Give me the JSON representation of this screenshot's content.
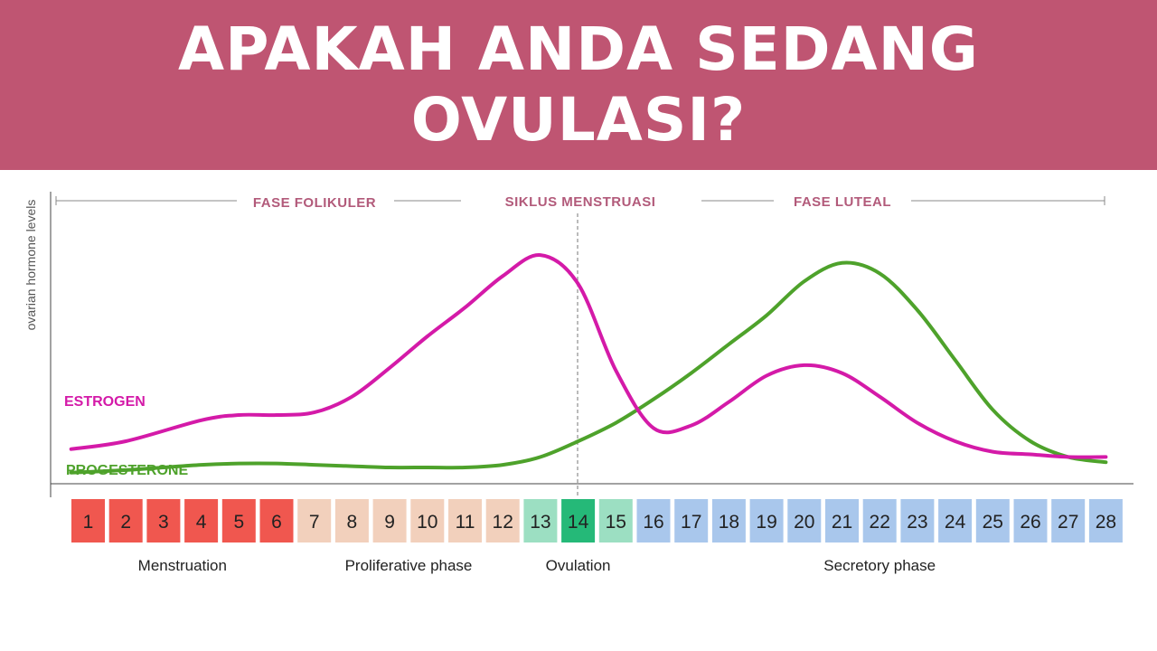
{
  "banner": {
    "title_line1": "APAKAH ANDA SEDANG",
    "title_line2": "OVULASI?",
    "background": "#bf5572"
  },
  "chart_data": {
    "type": "line",
    "ylabel": "ovarian hormone levels",
    "xlabel": "",
    "x_range": [
      1,
      28
    ],
    "ovulation_day": 14,
    "header": {
      "left": "FASE FOLIKULER",
      "center": "SIKLUS MENSTRUASI",
      "right": "FASE LUTEAL"
    },
    "series": [
      {
        "name": "ESTROGEN",
        "color": "#d41aa8",
        "x": [
          0.55,
          2,
          4,
          5,
          6,
          7,
          8,
          9,
          10,
          11,
          12,
          13,
          14,
          15,
          16,
          17,
          18,
          19,
          20,
          21,
          22,
          23,
          24,
          25,
          26,
          27,
          28
        ],
        "values": [
          17,
          20,
          28,
          30,
          30,
          31,
          37,
          48,
          60,
          71,
          83,
          91,
          80,
          47,
          25,
          26,
          35,
          45,
          49,
          46,
          37,
          27,
          20,
          16,
          15,
          14,
          14
        ]
      },
      {
        "name": "PROGESTERONE",
        "color": "#4ea22b",
        "x": [
          0.55,
          2,
          3,
          4,
          5,
          6,
          7,
          8,
          9,
          10,
          11,
          12,
          13,
          14,
          15,
          16,
          17,
          18,
          19,
          20,
          21,
          22,
          23,
          24,
          25,
          26,
          27,
          28
        ],
        "values": [
          8,
          9,
          10,
          11,
          11.5,
          11.5,
          11,
          10.5,
          10,
          10,
          10,
          11,
          14,
          20,
          27,
          36,
          46,
          57,
          68,
          81,
          88,
          84,
          70,
          51,
          32,
          20,
          14,
          12
        ]
      }
    ],
    "days": {
      "labels": [
        "1",
        "2",
        "3",
        "4",
        "5",
        "6",
        "7",
        "8",
        "9",
        "10",
        "11",
        "12",
        "13",
        "14",
        "15",
        "16",
        "17",
        "18",
        "19",
        "20",
        "21",
        "22",
        "23",
        "24",
        "25",
        "26",
        "27",
        "28"
      ],
      "colors": [
        "#f0574f",
        "#f0574f",
        "#f0574f",
        "#f0574f",
        "#f0574f",
        "#f0574f",
        "#f2d0bc",
        "#f2d0bc",
        "#f2d0bc",
        "#f2d0bc",
        "#f2d0bc",
        "#f2d0bc",
        "#9cdfc2",
        "#25b978",
        "#9cdfc2",
        "#a9c7ec",
        "#a9c7ec",
        "#a9c7ec",
        "#a9c7ec",
        "#a9c7ec",
        "#a9c7ec",
        "#a9c7ec",
        "#a9c7ec",
        "#a9c7ec",
        "#a9c7ec",
        "#a9c7ec",
        "#a9c7ec",
        "#a9c7ec"
      ]
    },
    "phases": [
      {
        "label": "Menstruation",
        "center_day": 3.5
      },
      {
        "label": "Proliferative phase",
        "center_day": 9.5
      },
      {
        "label": "Ovulation",
        "center_day": 14
      },
      {
        "label": "Secretory phase",
        "center_day": 22
      }
    ]
  }
}
